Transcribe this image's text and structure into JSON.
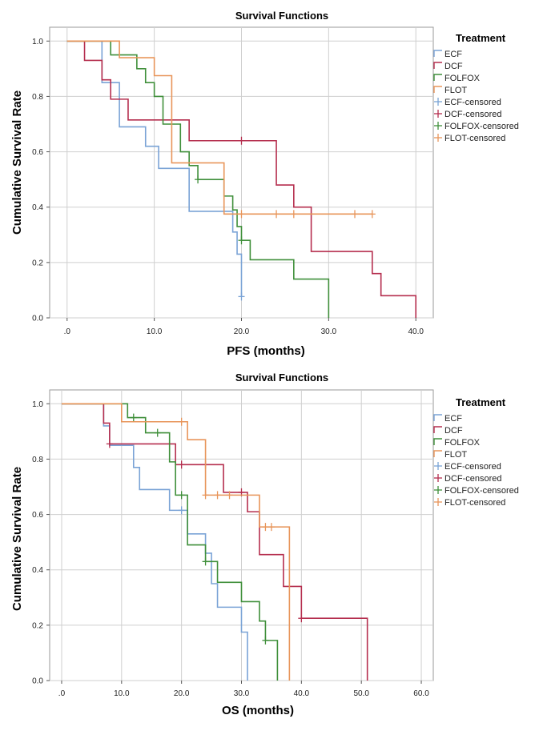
{
  "figure_title": "Survival Functions",
  "colors": {
    "ECF": "#7aa3d6",
    "DCF": "#b52e4e",
    "FOLFOX": "#3f8f3a",
    "FLOT": "#e8955a",
    "grid": "#cfcfcf",
    "border": "#9a9a9a",
    "axis": "#555555"
  },
  "chart_data": [
    {
      "type": "line",
      "subtype": "kaplan-meier-step",
      "title": "Survival Functions",
      "xlabel": "PFS (months)",
      "ylabel": "Cumulative Survival Rate",
      "xlim": [
        -2,
        42
      ],
      "ylim": [
        0,
        1.05
      ],
      "xticks": [
        0,
        10,
        20,
        30,
        40
      ],
      "xtick_labels": [
        ".0",
        "10.0",
        "20.0",
        "30.0",
        "40.0"
      ],
      "yticks": [
        0,
        0.2,
        0.4,
        0.6,
        0.8,
        1.0
      ],
      "ytick_labels": [
        "0.0",
        "0.2",
        "0.4",
        "0.6",
        "0.8",
        "1.0"
      ],
      "legend_title": "Treatment",
      "legend": [
        "ECF",
        "DCF",
        "FOLFOX",
        "FLOT",
        "ECF-censored",
        "DCF-censored",
        "FOLFOX-censored",
        "FLOT-censored"
      ],
      "series": [
        {
          "name": "ECF",
          "color_key": "ECF",
          "steps": [
            [
              0,
              1.0
            ],
            [
              4,
              0.85
            ],
            [
              6,
              0.69
            ],
            [
              9,
              0.62
            ],
            [
              10.5,
              0.54
            ],
            [
              14,
              0.385
            ],
            [
              19,
              0.31
            ],
            [
              19.5,
              0.23
            ],
            [
              20,
              0.077
            ]
          ],
          "end": 20,
          "censored": [
            [
              20,
              0.077
            ]
          ]
        },
        {
          "name": "DCF",
          "color_key": "DCF",
          "steps": [
            [
              0,
              1.0
            ],
            [
              2,
              0.93
            ],
            [
              4,
              0.86
            ],
            [
              5,
              0.79
            ],
            [
              7,
              0.715
            ],
            [
              14,
              0.64
            ],
            [
              24,
              0.48
            ],
            [
              26,
              0.4
            ],
            [
              28,
              0.24
            ],
            [
              35,
              0.16
            ],
            [
              36,
              0.08
            ],
            [
              40,
              0.0
            ]
          ],
          "end": 40,
          "censored": [
            [
              20,
              0.64
            ]
          ]
        },
        {
          "name": "FOLFOX",
          "color_key": "FOLFOX",
          "steps": [
            [
              0,
              1.0
            ],
            [
              5,
              0.95
            ],
            [
              8,
              0.9
            ],
            [
              9,
              0.85
            ],
            [
              10,
              0.8
            ],
            [
              11,
              0.7
            ],
            [
              13,
              0.6
            ],
            [
              14,
              0.55
            ],
            [
              15,
              0.5
            ],
            [
              18,
              0.44
            ],
            [
              19,
              0.39
            ],
            [
              19.5,
              0.33
            ],
            [
              20,
              0.28
            ],
            [
              21,
              0.21
            ],
            [
              26,
              0.14
            ],
            [
              30,
              0.0
            ]
          ],
          "end": 30,
          "censored": [
            [
              15,
              0.5
            ],
            [
              20,
              0.28
            ]
          ]
        },
        {
          "name": "FLOT",
          "color_key": "FLOT",
          "steps": [
            [
              0,
              1.0
            ],
            [
              6,
              0.94
            ],
            [
              10,
              0.875
            ],
            [
              12,
              0.56
            ],
            [
              18,
              0.375
            ]
          ],
          "end": 35,
          "censored": [
            [
              20,
              0.375
            ],
            [
              24,
              0.375
            ],
            [
              26,
              0.375
            ],
            [
              33,
              0.375
            ],
            [
              35,
              0.375
            ]
          ]
        }
      ]
    },
    {
      "type": "line",
      "subtype": "kaplan-meier-step",
      "title": "Survival Functions",
      "xlabel": "OS  (months)",
      "ylabel": "Cumulative Survival Rate",
      "xlim": [
        -2,
        62
      ],
      "ylim": [
        0,
        1.05
      ],
      "xticks": [
        0,
        10,
        20,
        30,
        40,
        50,
        60
      ],
      "xtick_labels": [
        ".0",
        "10.0",
        "20.0",
        "30.0",
        "40.0",
        "50.0",
        "60.0"
      ],
      "yticks": [
        0,
        0.2,
        0.4,
        0.6,
        0.8,
        1.0
      ],
      "ytick_labels": [
        "0.0",
        "0.2",
        "0.4",
        "0.6",
        "0.8",
        "1.0"
      ],
      "legend_title": "Treatment",
      "legend": [
        "ECF",
        "DCF",
        "FOLFOX",
        "FLOT",
        "ECF-censored",
        "DCF-censored",
        "FOLFOX-censored",
        "FLOT-censored"
      ],
      "series": [
        {
          "name": "ECF",
          "color_key": "ECF",
          "steps": [
            [
              0,
              1.0
            ],
            [
              7,
              0.92
            ],
            [
              8,
              0.85
            ],
            [
              12,
              0.77
            ],
            [
              13,
              0.69
            ],
            [
              18,
              0.615
            ],
            [
              21,
              0.53
            ],
            [
              24,
              0.46
            ],
            [
              25,
              0.35
            ],
            [
              26,
              0.265
            ],
            [
              30,
              0.175
            ],
            [
              31,
              0.0
            ]
          ],
          "end": 31,
          "censored": [
            [
              20,
              0.615
            ]
          ]
        },
        {
          "name": "DCF",
          "color_key": "DCF",
          "steps": [
            [
              0,
              1.0
            ],
            [
              7,
              0.93
            ],
            [
              8,
              0.855
            ],
            [
              19,
              0.78
            ],
            [
              27,
              0.68
            ],
            [
              31,
              0.61
            ],
            [
              33,
              0.455
            ],
            [
              37,
              0.34
            ],
            [
              40,
              0.225
            ],
            [
              51,
              0.0
            ]
          ],
          "end": 51,
          "censored": [
            [
              8,
              0.855
            ],
            [
              20,
              0.78
            ],
            [
              24,
              0.78
            ],
            [
              30,
              0.68
            ],
            [
              40,
              0.225
            ]
          ]
        },
        {
          "name": "FOLFOX",
          "color_key": "FOLFOX",
          "steps": [
            [
              0,
              1.0
            ],
            [
              11,
              0.95
            ],
            [
              14,
              0.895
            ],
            [
              18,
              0.79
            ],
            [
              19,
              0.67
            ],
            [
              21,
              0.49
            ],
            [
              24,
              0.43
            ],
            [
              26,
              0.355
            ],
            [
              30,
              0.285
            ],
            [
              33,
              0.215
            ],
            [
              34,
              0.145
            ],
            [
              36,
              0.0
            ]
          ],
          "end": 36,
          "censored": [
            [
              12,
              0.95
            ],
            [
              16,
              0.895
            ],
            [
              20,
              0.67
            ],
            [
              24,
              0.43
            ],
            [
              34,
              0.145
            ]
          ]
        },
        {
          "name": "FLOT",
          "color_key": "FLOT",
          "steps": [
            [
              0,
              1.0
            ],
            [
              10,
              0.935
            ],
            [
              21,
              0.87
            ],
            [
              24,
              0.67
            ],
            [
              33,
              0.555
            ],
            [
              38,
              0.0
            ]
          ],
          "end": 38,
          "censored": [
            [
              20,
              0.935
            ],
            [
              24,
              0.67
            ],
            [
              26,
              0.67
            ],
            [
              28,
              0.67
            ],
            [
              34,
              0.555
            ],
            [
              35,
              0.555
            ]
          ]
        }
      ]
    }
  ]
}
